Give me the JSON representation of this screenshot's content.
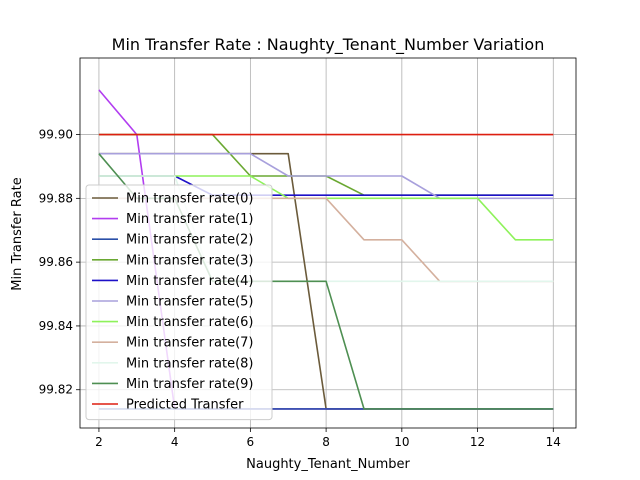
{
  "chart_data": {
    "type": "line",
    "title": "Min Transfer Rate : Naughty_Tenant_Number Variation",
    "xlabel": "Naughty_Tenant_Number",
    "ylabel": "Min Transfer Rate",
    "xlim": [
      1.5,
      14.6
    ],
    "ylim": [
      99.808,
      99.924
    ],
    "xticks": [
      2,
      4,
      6,
      8,
      10,
      12,
      14
    ],
    "yticks": [
      99.82,
      99.84,
      99.86,
      99.88,
      99.9
    ],
    "ytick_labels": [
      "99.82",
      "99.84",
      "99.86",
      "99.88",
      "99.90"
    ],
    "grid": true,
    "legend_position": "lower-left",
    "x": [
      2,
      3,
      4,
      5,
      6,
      7,
      8,
      9,
      10,
      11,
      12,
      13,
      14
    ],
    "series": [
      {
        "name": "Min transfer rate(0)",
        "color": "#6b5b3b",
        "values": [
          99.894,
          99.894,
          99.894,
          99.894,
          99.894,
          99.894,
          99.814,
          99.814,
          99.814,
          99.814,
          99.814,
          99.814,
          99.814
        ]
      },
      {
        "name": "Min transfer rate(1)",
        "color": "#b23df0",
        "values": [
          99.914,
          99.9,
          99.814,
          99.814,
          99.814,
          99.814,
          99.814,
          99.814,
          99.814,
          99.814,
          99.814,
          99.814,
          99.814
        ]
      },
      {
        "name": "Min transfer rate(2)",
        "color": "#2a4fa8",
        "values": [
          99.814,
          99.814,
          99.814,
          99.814,
          99.814,
          99.814,
          99.814,
          99.814,
          99.814,
          99.814,
          99.814,
          99.814,
          99.814
        ]
      },
      {
        "name": "Min transfer rate(3)",
        "color": "#6aa832",
        "values": [
          99.9,
          99.9,
          99.9,
          99.9,
          99.887,
          99.887,
          99.887,
          99.881,
          99.881,
          99.881,
          99.881,
          99.881,
          99.881
        ]
      },
      {
        "name": "Min transfer rate(4)",
        "color": "#1d10c8",
        "values": [
          99.887,
          99.887,
          99.887,
          99.881,
          99.881,
          99.881,
          99.881,
          99.881,
          99.881,
          99.881,
          99.881,
          99.881,
          99.881
        ]
      },
      {
        "name": "Min transfer rate(5)",
        "color": "#a8a0dc",
        "values": [
          99.894,
          99.894,
          99.894,
          99.894,
          99.894,
          99.887,
          99.887,
          99.887,
          99.887,
          99.88,
          99.88,
          99.88,
          99.88
        ]
      },
      {
        "name": "Min transfer rate(6)",
        "color": "#8ef25a",
        "values": [
          99.887,
          99.887,
          99.887,
          99.887,
          99.887,
          99.88,
          99.88,
          99.88,
          99.88,
          99.88,
          99.88,
          99.867,
          99.867
        ]
      },
      {
        "name": "Min transfer rate(7)",
        "color": "#d4b09e",
        "values": [
          99.88,
          99.88,
          99.88,
          99.88,
          99.88,
          99.88,
          99.88,
          99.867,
          99.867,
          99.854,
          99.854,
          99.854,
          99.854
        ]
      },
      {
        "name": "Min transfer rate(8)",
        "color": "#e2f6ec",
        "values": [
          99.887,
          99.887,
          99.887,
          99.854,
          99.854,
          99.854,
          99.854,
          99.854,
          99.854,
          99.854,
          99.854,
          99.854,
          99.854
        ]
      },
      {
        "name": "Min transfer rate(9)",
        "color": "#4e8f52",
        "values": [
          99.894,
          99.88,
          99.88,
          99.854,
          99.854,
          99.854,
          99.854,
          99.814,
          99.814,
          99.814,
          99.814,
          99.814,
          99.814
        ]
      },
      {
        "name": "Predicted Transfer",
        "color": "#dd1f10",
        "values": [
          99.9,
          99.9,
          99.9,
          99.9,
          99.9,
          99.9,
          99.9,
          99.9,
          99.9,
          99.9,
          99.9,
          99.9,
          99.9
        ]
      }
    ]
  }
}
